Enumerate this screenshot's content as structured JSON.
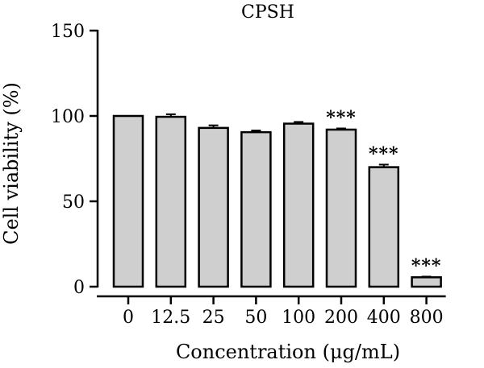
{
  "chart_data": {
    "type": "bar",
    "title": "CPSH",
    "xlabel": "Concentration (μg/mL)",
    "ylabel": "Cell viability (%)",
    "ylim": [
      0,
      150
    ],
    "yticks": [
      "0",
      "50",
      "100",
      "150"
    ],
    "categories": [
      "0",
      "12.5",
      "25",
      "50",
      "100",
      "200",
      "400",
      "800"
    ],
    "values": [
      100,
      99.5,
      93,
      90.5,
      95.5,
      92,
      70,
      5.5
    ],
    "errors": [
      0,
      1.5,
      1.5,
      1,
      1,
      0.7,
      1.5,
      0.4
    ],
    "significance": [
      "",
      "",
      "",
      "",
      "",
      "***",
      "***",
      "***"
    ],
    "grid": false,
    "bar_color": "#cfcfcf"
  }
}
